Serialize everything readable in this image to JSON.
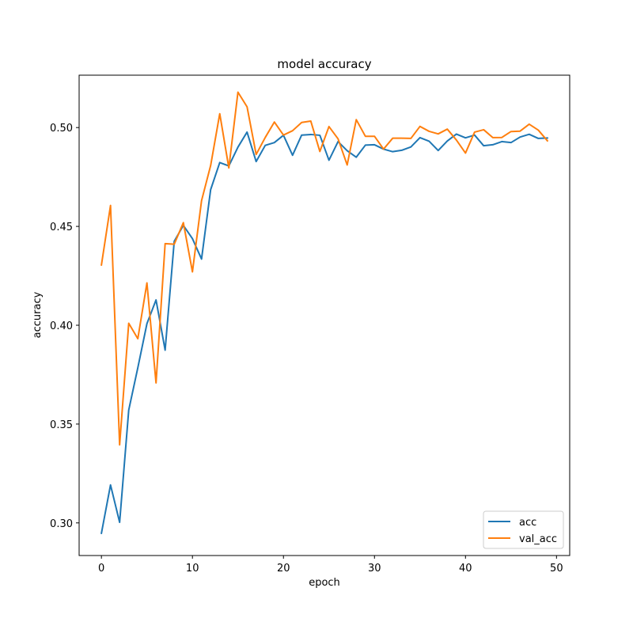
{
  "chart_data": {
    "type": "line",
    "title": "model accuracy",
    "xlabel": "epoch",
    "ylabel": "accuracy",
    "xlim": [
      -2.45,
      51.45
    ],
    "ylim": [
      0.2835,
      0.5265
    ],
    "xticks": [
      0,
      10,
      20,
      30,
      40,
      50
    ],
    "xtick_labels": [
      "0",
      "10",
      "20",
      "30",
      "40",
      "50"
    ],
    "yticks": [
      0.3,
      0.35,
      0.4,
      0.45,
      0.5
    ],
    "ytick_labels": [
      "0.30",
      "0.35",
      "0.40",
      "0.45",
      "0.50"
    ],
    "grid": false,
    "legend_position": "lower-right",
    "x": [
      0,
      1,
      2,
      3,
      4,
      5,
      6,
      7,
      8,
      9,
      10,
      11,
      12,
      13,
      14,
      15,
      16,
      17,
      18,
      19,
      20,
      21,
      22,
      23,
      24,
      25,
      26,
      27,
      28,
      29,
      30,
      31,
      32,
      33,
      34,
      35,
      36,
      37,
      38,
      39,
      40,
      41,
      42,
      43,
      44,
      45,
      46,
      47,
      48,
      49
    ],
    "series": [
      {
        "name": "acc",
        "color": "#1f77b4",
        "values": [
          0.2948,
          0.3192,
          0.3003,
          0.3571,
          0.3785,
          0.4008,
          0.4128,
          0.3874,
          0.4425,
          0.4505,
          0.4438,
          0.4335,
          0.4686,
          0.4823,
          0.4806,
          0.4901,
          0.4977,
          0.4828,
          0.491,
          0.4924,
          0.4961,
          0.486,
          0.4962,
          0.4965,
          0.4961,
          0.4835,
          0.4929,
          0.4883,
          0.485,
          0.4911,
          0.4913,
          0.4891,
          0.4878,
          0.4885,
          0.4902,
          0.4949,
          0.4931,
          0.4884,
          0.4932,
          0.4967,
          0.4948,
          0.4962,
          0.4908,
          0.4913,
          0.4929,
          0.4924,
          0.4952,
          0.4966,
          0.4945,
          0.4947
        ]
      },
      {
        "name": "val_acc",
        "color": "#ff7f0e",
        "values": [
          0.4305,
          0.4606,
          0.3395,
          0.401,
          0.3932,
          0.4214,
          0.3708,
          0.4413,
          0.441,
          0.4519,
          0.427,
          0.463,
          0.4808,
          0.507,
          0.4796,
          0.5179,
          0.5105,
          0.4864,
          0.495,
          0.5028,
          0.4962,
          0.4984,
          0.5026,
          0.5033,
          0.4879,
          0.5005,
          0.4943,
          0.4811,
          0.504,
          0.4956,
          0.4956,
          0.4891,
          0.4946,
          0.4946,
          0.4945,
          0.5006,
          0.4981,
          0.4968,
          0.4992,
          0.4937,
          0.4871,
          0.4977,
          0.4989,
          0.4949,
          0.495,
          0.498,
          0.4982,
          0.5017,
          0.4987,
          0.4933
        ]
      }
    ]
  }
}
